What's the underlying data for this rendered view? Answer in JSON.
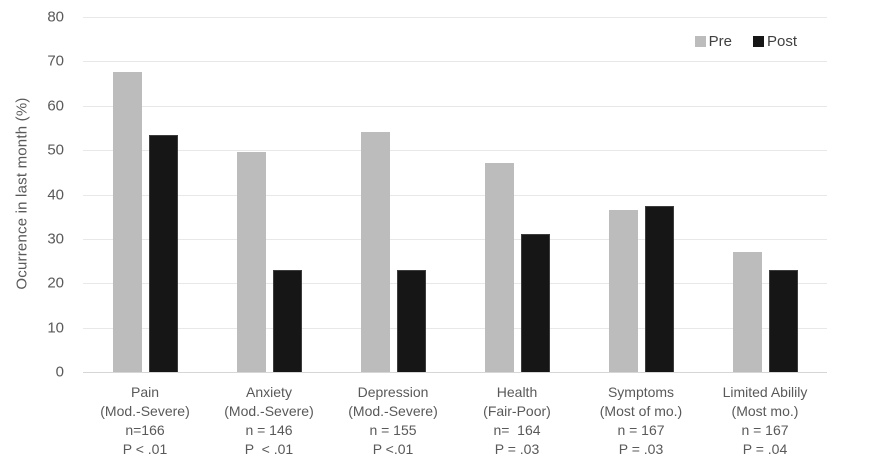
{
  "chart_data": {
    "type": "bar",
    "title": "",
    "xlabel": "",
    "ylabel": "Ocurrence in last month (%)",
    "ylim": [
      0,
      80
    ],
    "ytick_step": 10,
    "grid": true,
    "legend_position": "top-right",
    "categories": [
      {
        "name": "Pain",
        "lines": [
          "Pain",
          "(Mod.-Severe)",
          "n=166",
          "P < .01"
        ]
      },
      {
        "name": "Anxiety",
        "lines": [
          "Anxiety",
          "(Mod.-Severe)",
          "n = 146",
          "P  < .01"
        ]
      },
      {
        "name": "Depression",
        "lines": [
          "Depression",
          "(Mod.-Severe)",
          "n = 155",
          "P <.01"
        ]
      },
      {
        "name": "Health",
        "lines": [
          "Health",
          "(Fair-Poor)",
          "n=  164",
          "P = .03"
        ]
      },
      {
        "name": "Symptoms",
        "lines": [
          "Symptoms",
          "(Most of mo.)",
          "n = 167",
          "P = .03"
        ]
      },
      {
        "name": "Limited Abilily",
        "lines": [
          "Limited Abilily",
          "(Most mo.)",
          "n = 167",
          "P = .04"
        ]
      }
    ],
    "series": [
      {
        "name": "Pre",
        "color": "#bcbcbc",
        "values": [
          67.5,
          49.5,
          54,
          47,
          36.5,
          27
        ]
      },
      {
        "name": "Post",
        "color": "#161616",
        "values": [
          53.5,
          23,
          23,
          31,
          37.5,
          23
        ]
      }
    ],
    "colors": {
      "text": "#595959",
      "gridline": "#e8e8e8",
      "axis_line": "#d6d6d6",
      "legend_text": "#404040"
    }
  }
}
